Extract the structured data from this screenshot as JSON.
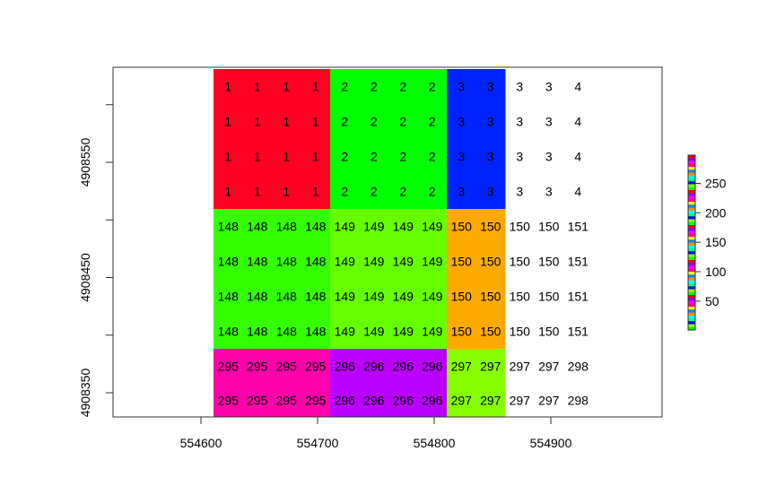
{
  "chart_data": {
    "type": "heatmap",
    "title": "",
    "xlabel": "",
    "ylabel": "",
    "x_ticks": [
      554600,
      554700,
      554800,
      554900
    ],
    "y_ticks": [
      4908350,
      4908450,
      4908550
    ],
    "xlim": [
      554528,
      554998
    ],
    "ylim": [
      4908330,
      4908620
    ],
    "cell_columns": [
      "554620",
      "554650",
      "554680",
      "554710",
      "554740",
      "554770",
      "554800",
      "554830",
      "554860",
      "554890",
      "554920",
      "554950",
      "554980"
    ],
    "cell_rows": [
      "4908600",
      "4908570",
      "4908540",
      "4908510",
      "4908480",
      "4908450",
      "4908420",
      "4908390",
      "4908360",
      "4908340"
    ],
    "grid": false,
    "values": [
      [
        1,
        1,
        1,
        1,
        2,
        2,
        2,
        2,
        3,
        3,
        3,
        3,
        4
      ],
      [
        1,
        1,
        1,
        1,
        2,
        2,
        2,
        2,
        3,
        3,
        3,
        3,
        4
      ],
      [
        1,
        1,
        1,
        1,
        2,
        2,
        2,
        2,
        3,
        3,
        3,
        3,
        4
      ],
      [
        1,
        1,
        1,
        1,
        2,
        2,
        2,
        2,
        3,
        3,
        3,
        3,
        4
      ],
      [
        148,
        148,
        148,
        148,
        149,
        149,
        149,
        149,
        150,
        150,
        150,
        150,
        151
      ],
      [
        148,
        148,
        148,
        148,
        149,
        149,
        149,
        149,
        150,
        150,
        150,
        150,
        151
      ],
      [
        148,
        148,
        148,
        148,
        149,
        149,
        149,
        149,
        150,
        150,
        150,
        150,
        151
      ],
      [
        148,
        148,
        148,
        148,
        149,
        149,
        149,
        149,
        150,
        150,
        150,
        150,
        151
      ],
      [
        295,
        295,
        295,
        295,
        296,
        296,
        296,
        296,
        297,
        297,
        297,
        297,
        298
      ],
      [
        295,
        295,
        295,
        295,
        296,
        296,
        296,
        296,
        297,
        297,
        297,
        297,
        298
      ]
    ],
    "colored_columns": 10,
    "block_colors": [
      [
        "#ff0022",
        "#00ff00",
        "#0022ff"
      ],
      [
        "#33ff00",
        "#66ff00",
        "#ffaa00"
      ],
      [
        "#ff00aa",
        "#bb00ff",
        "#88ff00"
      ]
    ],
    "legend": {
      "placement": "right",
      "ticks": [
        50,
        100,
        150,
        200,
        250
      ],
      "range": [
        1,
        298
      ],
      "colors": [
        "#ff0000",
        "#00ffff",
        "#ff00ff",
        "#0000ff",
        "#ffff00",
        "#00ff00",
        "#ff8800",
        "#8800ff",
        "#00ff88",
        "#ff0088",
        "#88ff00",
        "#0088ff"
      ]
    }
  }
}
